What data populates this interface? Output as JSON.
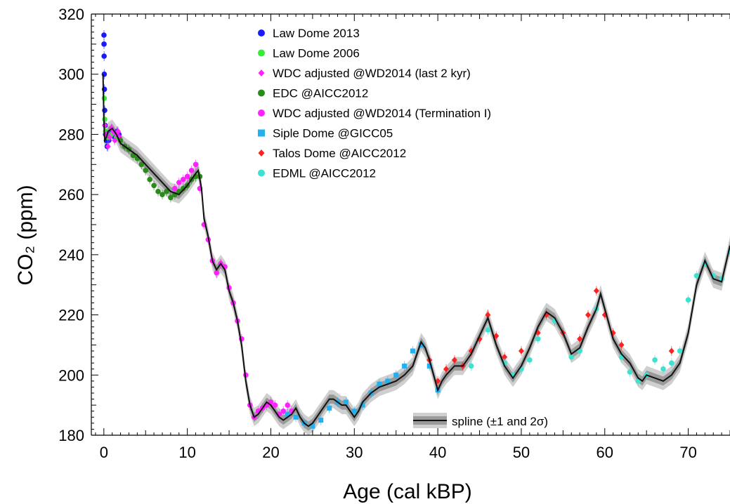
{
  "chart_data": {
    "type": "scatter",
    "xlabel": "Age (cal kBP)",
    "ylabel": "CO₂ (ppm)",
    "xlim": [
      -1.5,
      75
    ],
    "ylim": [
      180,
      320
    ],
    "x_ticks": [
      0,
      10,
      20,
      30,
      40,
      50,
      60,
      70
    ],
    "y_ticks": [
      180,
      200,
      220,
      240,
      260,
      280,
      300,
      320
    ],
    "grid": false,
    "legend_position": "top-center",
    "series": [
      {
        "name": "Law Dome 2013",
        "marker": "circle",
        "color": "#1a1aff",
        "x": [
          0.01,
          0.02,
          0.03,
          0.05,
          0.07,
          0.1,
          0.15,
          0.2,
          0.3,
          0.4,
          0.6,
          0.8,
          1.0,
          1.3,
          1.6,
          1.8
        ],
        "y": [
          313,
          310,
          306,
          300,
          295,
          288,
          283,
          280,
          278,
          276,
          278,
          280,
          281,
          279,
          281,
          280
        ]
      },
      {
        "name": "Law Dome 2006",
        "marker": "circle",
        "color": "#33ee33",
        "x": [
          0.05,
          0.1,
          0.2,
          0.5,
          0.9,
          1.5
        ],
        "y": [
          292,
          285,
          281,
          279,
          280,
          279
        ]
      },
      {
        "name": "WDC adjusted @WD2014 (last 2 kyr)",
        "marker": "diamond",
        "color": "#ff22ff",
        "x": [
          0.1,
          0.3,
          0.5,
          0.7,
          0.9,
          1.1,
          1.3,
          1.5,
          1.7,
          1.9
        ],
        "y": [
          283,
          280,
          276,
          279,
          282,
          281,
          278,
          280,
          281,
          279
        ]
      },
      {
        "name": "EDC @AICC2012",
        "marker": "circle",
        "color": "#2a8a1a",
        "x": [
          2,
          2.5,
          3,
          3.5,
          4,
          4.5,
          5,
          5.5,
          6,
          6.5,
          7,
          7.5,
          8,
          8.5,
          9,
          9.5,
          10,
          10.5,
          11,
          11.5
        ],
        "y": [
          278,
          276,
          275,
          273,
          272,
          270,
          268,
          265,
          263,
          261,
          260,
          261,
          259,
          260,
          261,
          262,
          263,
          265,
          266,
          266
        ]
      },
      {
        "name": "WDC adjusted @WD2014 (Termination I)",
        "marker": "circle",
        "color": "#ff22ff",
        "x": [
          8.5,
          9,
          9.5,
          10,
          10.5,
          11,
          11.5,
          12,
          12.5,
          13,
          13.5,
          14,
          14.5,
          15,
          15.5,
          16,
          16.5,
          17,
          17.5,
          18,
          18.5,
          19,
          19.5,
          20,
          20.5,
          21,
          21.5,
          22,
          22.5
        ],
        "y": [
          262,
          264,
          265,
          266,
          268,
          270,
          262,
          250,
          245,
          238,
          234,
          237,
          236,
          229,
          224,
          218,
          212,
          200,
          190,
          186,
          188,
          189,
          190,
          191,
          190,
          187,
          188,
          190,
          188
        ]
      },
      {
        "name": "Siple Dome @GICC05",
        "marker": "square",
        "color": "#22b0f0",
        "x": [
          22,
          23,
          24,
          25,
          26,
          27,
          28,
          29,
          30,
          31,
          32,
          33,
          34,
          35,
          36,
          37,
          38,
          39,
          40
        ],
        "y": [
          187,
          186,
          184,
          183,
          185,
          189,
          191,
          191,
          188,
          190,
          194,
          197,
          198,
          200,
          203,
          208,
          210,
          203,
          195
        ]
      },
      {
        "name": "Talos Dome @AICC2012",
        "marker": "diamond",
        "color": "#ff2020",
        "x": [
          39,
          40,
          41,
          42,
          43,
          44,
          45,
          46,
          47,
          48,
          50,
          52,
          53,
          54,
          55,
          57,
          58,
          59,
          60,
          61,
          62,
          68
        ],
        "y": [
          205,
          198,
          202,
          205,
          203,
          208,
          212,
          220,
          213,
          206,
          208,
          214,
          220,
          218,
          214,
          212,
          220,
          228,
          220,
          214,
          210,
          208
        ]
      },
      {
        "name": "EDML @AICC2012",
        "marker": "circle",
        "color": "#40e0d0",
        "x": [
          44,
          46,
          48,
          49,
          50,
          51,
          52,
          54,
          56,
          57,
          59,
          62,
          63,
          64,
          65,
          66,
          67,
          68,
          69,
          70,
          71,
          72,
          73,
          74,
          75
        ],
        "y": [
          203,
          215,
          204,
          200,
          202,
          205,
          212,
          218,
          206,
          208,
          222,
          206,
          201,
          198,
          200,
          205,
          202,
          204,
          208,
          225,
          233,
          237,
          233,
          232,
          241
        ]
      }
    ],
    "spline": {
      "name": "spline (±1 and 2σ)",
      "x": [
        -0.1,
        0,
        0.1,
        0.3,
        0.5,
        1,
        1.5,
        2,
        3,
        4,
        5,
        6,
        7,
        8,
        9,
        10,
        10.5,
        11,
        11.3,
        11.7,
        12,
        12.5,
        13,
        13.5,
        14,
        14.5,
        15,
        15.5,
        16,
        16.5,
        17,
        17.5,
        18,
        18.5,
        19,
        19.5,
        20,
        20.5,
        21,
        21.5,
        22,
        22.5,
        23,
        23.5,
        24,
        24.5,
        25,
        25.5,
        26,
        26.5,
        27,
        27.5,
        28,
        28.5,
        29,
        29.5,
        30,
        30.5,
        31,
        32,
        33,
        34,
        35,
        36,
        37,
        37.5,
        38,
        38.5,
        39,
        39.5,
        40,
        40.5,
        41,
        42,
        43,
        44,
        45,
        46,
        47,
        48,
        49,
        50,
        51,
        52,
        53,
        54,
        55,
        56,
        57,
        58,
        59,
        59.5,
        60,
        61,
        62,
        63,
        64,
        64.5,
        65,
        66,
        67,
        68,
        69,
        70,
        71,
        72,
        73,
        74,
        75
      ],
      "y": [
        300,
        285,
        278,
        279,
        281,
        282,
        280,
        277,
        275,
        273,
        270,
        267,
        264,
        261,
        260,
        263,
        265,
        267,
        268,
        262,
        252,
        246,
        238,
        235,
        237,
        235,
        228,
        224,
        218,
        210,
        198,
        190,
        186,
        187,
        189,
        191,
        190,
        188,
        186,
        185,
        186,
        187,
        189,
        186,
        184,
        183,
        184,
        186,
        188,
        190,
        192,
        192,
        191,
        190,
        190,
        188,
        186,
        188,
        191,
        194,
        196,
        197,
        198,
        200,
        203,
        207,
        211,
        209,
        205,
        200,
        195,
        198,
        200,
        203,
        203,
        207,
        213,
        219,
        210,
        203,
        199,
        203,
        209,
        216,
        221,
        219,
        214,
        207,
        209,
        216,
        222,
        227,
        222,
        212,
        207,
        204,
        199,
        198,
        200,
        199,
        198,
        200,
        204,
        214,
        230,
        238,
        232,
        231,
        243
      ],
      "band_1sigma": 1.5,
      "band_2sigma": 3.0
    }
  }
}
